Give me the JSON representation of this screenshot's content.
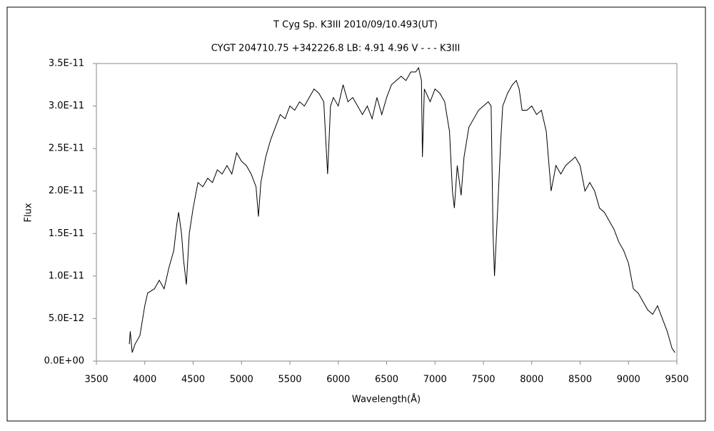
{
  "chart_data": {
    "type": "line",
    "title": "T Cyg    Sp. K3III    2010/09/10.493(UT)",
    "subtitle": "CYGT 204710.75 +342226.8 LB: 4.91  4.96 V - - - K3III",
    "xlabel": "Wavelength(Å)",
    "ylabel": "Flux",
    "color": "#000000",
    "x": [
      3840,
      3850,
      3870,
      3900,
      3950,
      4000,
      4030,
      4100,
      4150,
      4200,
      4250,
      4300,
      4330,
      4350,
      4380,
      4400,
      4430,
      4460,
      4500,
      4550,
      4600,
      4650,
      4700,
      4750,
      4800,
      4850,
      4900,
      4950,
      5000,
      5050,
      5100,
      5150,
      5175,
      5200,
      5250,
      5300,
      5350,
      5400,
      5450,
      5500,
      5550,
      5600,
      5650,
      5700,
      5750,
      5800,
      5850,
      5890,
      5920,
      5950,
      6000,
      6050,
      6100,
      6150,
      6200,
      6250,
      6300,
      6350,
      6400,
      6450,
      6500,
      6550,
      6600,
      6650,
      6700,
      6750,
      6800,
      6830,
      6860,
      6870,
      6890,
      6950,
      7000,
      7050,
      7100,
      7150,
      7180,
      7200,
      7230,
      7270,
      7300,
      7350,
      7400,
      7450,
      7500,
      7550,
      7580,
      7600,
      7615,
      7640,
      7680,
      7700,
      7750,
      7800,
      7840,
      7870,
      7900,
      7950,
      8000,
      8050,
      8100,
      8150,
      8200,
      8250,
      8300,
      8350,
      8400,
      8450,
      8500,
      8550,
      8600,
      8650,
      8700,
      8750,
      8800,
      8850,
      8900,
      8950,
      9000,
      9050,
      9100,
      9150,
      9200,
      9250,
      9300,
      9350,
      9400,
      9450,
      9480
    ],
    "values": [
      2e-12,
      3.5e-12,
      1e-12,
      2e-12,
      3e-12,
      6.5e-12,
      8e-12,
      8.5e-12,
      9.5e-12,
      8.5e-12,
      1.1e-11,
      1.3e-11,
      1.6e-11,
      1.75e-11,
      1.5e-11,
      1.2e-11,
      9e-12,
      1.5e-11,
      1.8e-11,
      2.1e-11,
      2.05e-11,
      2.15e-11,
      2.1e-11,
      2.25e-11,
      2.2e-11,
      2.3e-11,
      2.2e-11,
      2.45e-11,
      2.35e-11,
      2.3e-11,
      2.2e-11,
      2.05e-11,
      1.7e-11,
      2.1e-11,
      2.4e-11,
      2.6e-11,
      2.75e-11,
      2.9e-11,
      2.85e-11,
      3e-11,
      2.95e-11,
      3.05e-11,
      3e-11,
      3.1e-11,
      3.2e-11,
      3.15e-11,
      3.05e-11,
      2.2e-11,
      3e-11,
      3.1e-11,
      3e-11,
      3.25e-11,
      3.05e-11,
      3.1e-11,
      3e-11,
      2.9e-11,
      3e-11,
      2.85e-11,
      3.1e-11,
      2.9e-11,
      3.1e-11,
      3.25e-11,
      3.3e-11,
      3.35e-11,
      3.3e-11,
      3.4e-11,
      3.4e-11,
      3.45e-11,
      3.3e-11,
      2.4e-11,
      3.2e-11,
      3.05e-11,
      3.2e-11,
      3.15e-11,
      3.05e-11,
      2.7e-11,
      2e-11,
      1.8e-11,
      2.3e-11,
      1.95e-11,
      2.4e-11,
      2.75e-11,
      2.85e-11,
      2.95e-11,
      3e-11,
      3.05e-11,
      3e-11,
      1.5e-11,
      1e-11,
      1.6e-11,
      2.6e-11,
      3e-11,
      3.15e-11,
      3.25e-11,
      3.3e-11,
      3.2e-11,
      2.95e-11,
      2.95e-11,
      3e-11,
      2.9e-11,
      2.95e-11,
      2.7e-11,
      2e-11,
      2.3e-11,
      2.2e-11,
      2.3e-11,
      2.35e-11,
      2.4e-11,
      2.3e-11,
      2e-11,
      2.1e-11,
      2e-11,
      1.8e-11,
      1.75e-11,
      1.65e-11,
      1.55e-11,
      1.4e-11,
      1.3e-11,
      1.15e-11,
      8.5e-12,
      8e-12,
      7e-12,
      6e-12,
      5.5e-12,
      6.5e-12,
      5e-12,
      3.5e-12,
      1.5e-12,
      1e-12
    ],
    "xlim": [
      3500,
      9500
    ],
    "xticks": [
      3500,
      4000,
      4500,
      5000,
      5500,
      6000,
      6500,
      7000,
      7500,
      8000,
      8500,
      9000,
      9500
    ],
    "ylim": [
      0,
      3.5e-11
    ],
    "yticks": [
      {
        "value": 0,
        "label": "0.0E+00"
      },
      {
        "value": 5e-12,
        "label": "5.0E-12"
      },
      {
        "value": 1e-11,
        "label": "1.0E-11"
      },
      {
        "value": 1.5e-11,
        "label": "1.5E-11"
      },
      {
        "value": 2e-11,
        "label": "2.0E-11"
      },
      {
        "value": 2.5e-11,
        "label": "2.5E-11"
      },
      {
        "value": 3e-11,
        "label": "3.0E-11"
      },
      {
        "value": 3.5e-11,
        "label": "3.5E-11"
      }
    ],
    "grid": false
  }
}
